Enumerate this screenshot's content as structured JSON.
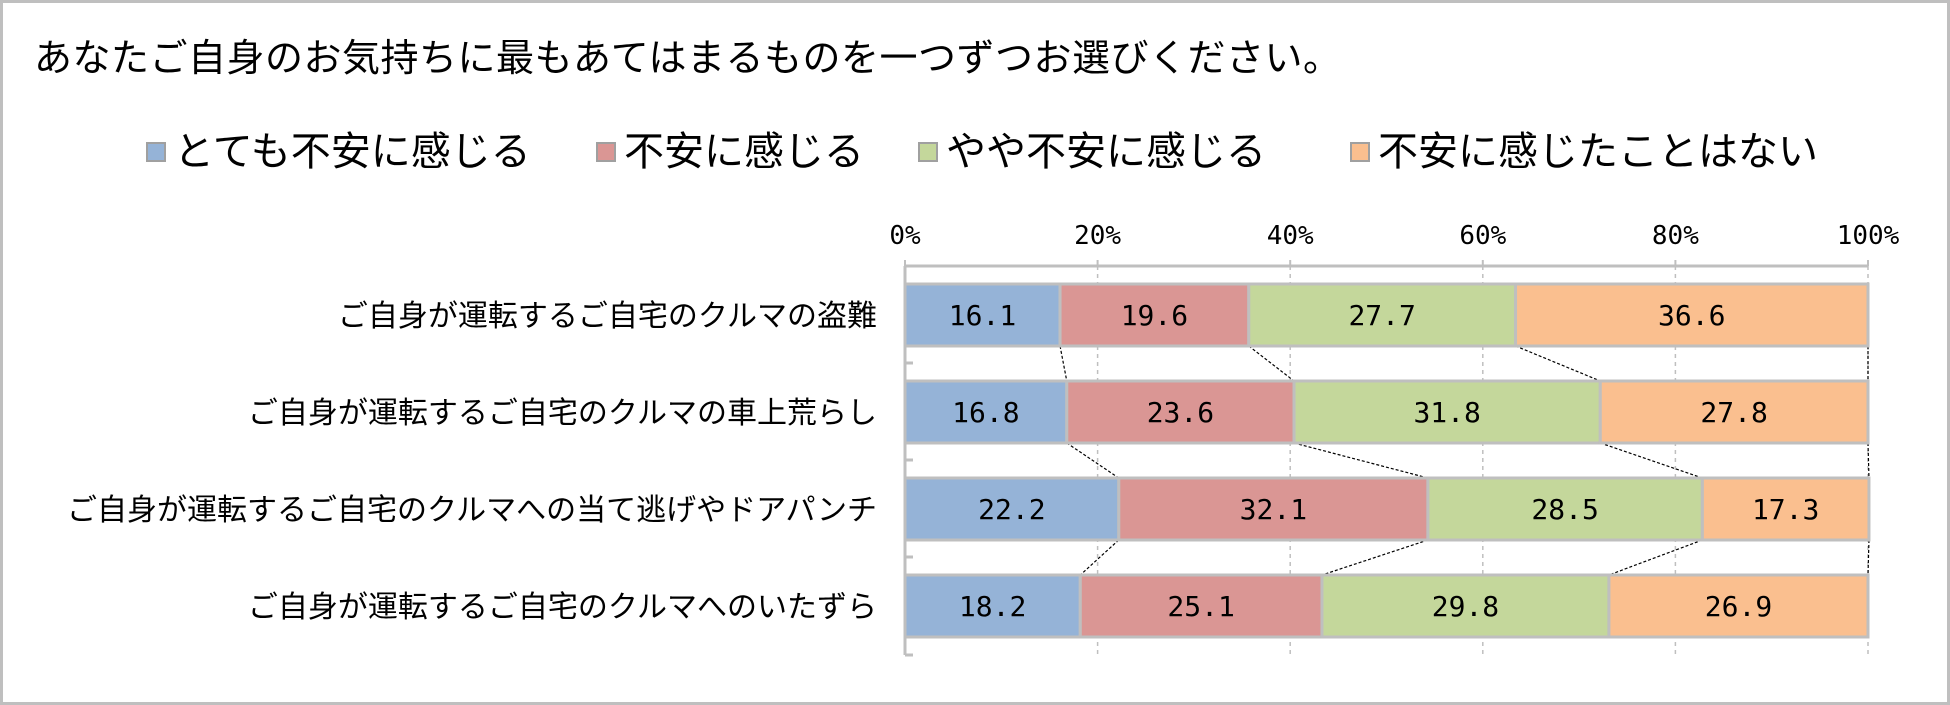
{
  "title": "あなたご自身のお気持ちに最もあてはまるものを一つずつお選びください。",
  "colors": {
    "series": [
      "#95b3d7",
      "#da9694",
      "#c4d79b",
      "#fabf8f"
    ],
    "bar_border": "#bfbfbf",
    "grid": "#bfbfbf",
    "axis": "#bfbfbf",
    "connector": "#000000"
  },
  "chart_data": {
    "type": "bar",
    "orientation": "horizontal",
    "stacked": "percent",
    "title": "あなたご自身のお気持ちに最もあてはまるものを一つずつお選びください。",
    "categories": [
      "ご自身が運転するご自宅のクルマの盗難",
      "ご自身が運転するご自宅のクルマの車上荒らし",
      "ご自身が運転するご自宅のクルマへの当て逃げやドアパンチ",
      "ご自身が運転するご自宅のクルマへのいたずら"
    ],
    "series": [
      {
        "name": "とても不安に感じる",
        "values": [
          16.1,
          16.8,
          22.2,
          18.2
        ]
      },
      {
        "name": "不安に感じる",
        "values": [
          19.6,
          23.6,
          32.1,
          25.1
        ]
      },
      {
        "name": "やや不安に感じる",
        "values": [
          27.7,
          31.8,
          28.5,
          29.8
        ]
      },
      {
        "name": "不安に感じたことはない",
        "values": [
          36.6,
          27.8,
          17.3,
          26.9
        ]
      }
    ],
    "xlim": [
      0,
      100
    ],
    "ticks": [
      "0%",
      "20%",
      "40%",
      "60%",
      "80%",
      "100%"
    ],
    "tick_values": [
      0,
      20,
      40,
      60,
      80,
      100
    ],
    "xlabel": "",
    "ylabel": "",
    "legend_position": "top",
    "gridlines": "dashed vertical",
    "series_lines": true
  }
}
